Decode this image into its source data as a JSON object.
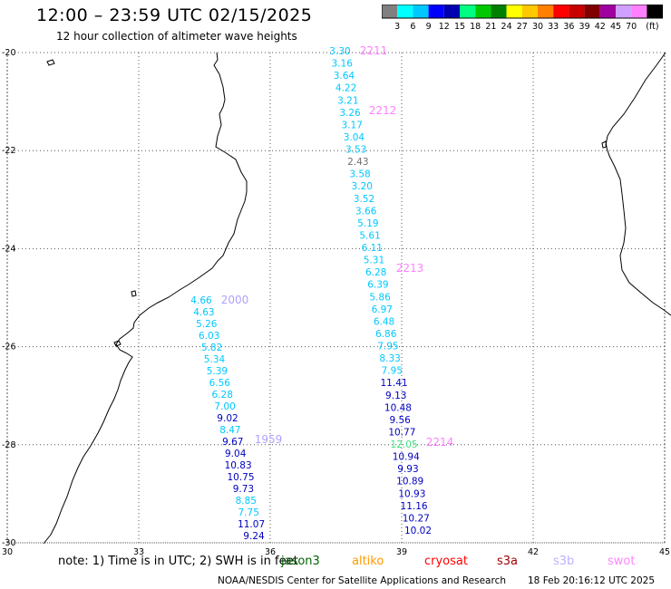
{
  "title": "12:00 – 23:59 UTC 02/15/2025",
  "subtitle": "12 hour collection of altimeter wave heights",
  "colorbar": {
    "labels": [
      "3",
      "6",
      "9",
      "12",
      "15",
      "18",
      "21",
      "24",
      "27",
      "30",
      "33",
      "36",
      "39",
      "42",
      "45",
      "70"
    ],
    "unit": "(ft)",
    "colors": [
      "#808080",
      "#00ffff",
      "#00c8ff",
      "#0000ff",
      "#0000b0",
      "#00ff80",
      "#00c800",
      "#008000",
      "#ffff00",
      "#ffc800",
      "#ff8000",
      "#ff0000",
      "#c80000",
      "#800000",
      "#a000a0",
      "#d0a0ff",
      "#ff80ff",
      "#000000"
    ]
  },
  "map": {
    "lat_ticks": [
      {
        "value": -20,
        "label": "-20"
      },
      {
        "value": -22,
        "label": "-22"
      },
      {
        "value": -24,
        "label": "-24"
      },
      {
        "value": -26,
        "label": "-26"
      },
      {
        "value": -28,
        "label": "-28"
      },
      {
        "value": -30,
        "label": "-30"
      }
    ],
    "lon_ticks": [
      {
        "value": 30,
        "label": "30"
      },
      {
        "value": 33,
        "label": "33"
      },
      {
        "value": 36,
        "label": "36"
      },
      {
        "value": 39,
        "label": "39"
      },
      {
        "value": 42,
        "label": "42"
      },
      {
        "value": 45,
        "label": "45"
      }
    ],
    "track_times": [
      {
        "label": "2211",
        "color": "#ff80ff"
      },
      {
        "label": "2212",
        "color": "#ff80ff"
      },
      {
        "label": "2213",
        "color": "#ff80ff"
      },
      {
        "label": "2214",
        "color": "#ff80ff"
      },
      {
        "label": "2000",
        "color": "#b0a0ff"
      },
      {
        "label": "1959",
        "color": "#b0a0ff"
      }
    ],
    "tracks": [
      {
        "name": "east",
        "observations": [
          {
            "v": "3.30",
            "c": "#00c8ff"
          },
          {
            "v": "3.16",
            "c": "#00c8ff"
          },
          {
            "v": "3.64",
            "c": "#00c8ff"
          },
          {
            "v": "4.22",
            "c": "#00c8ff"
          },
          {
            "v": "3.21",
            "c": "#00c8ff"
          },
          {
            "v": "3.26",
            "c": "#00c8ff"
          },
          {
            "v": "3.17",
            "c": "#00c8ff"
          },
          {
            "v": "3.04",
            "c": "#00c8ff"
          },
          {
            "v": "3.53",
            "c": "#00c8ff"
          },
          {
            "v": "2.43",
            "c": "#707070"
          },
          {
            "v": "3.58",
            "c": "#00c8ff"
          },
          {
            "v": "3.20",
            "c": "#00c8ff"
          },
          {
            "v": "3.52",
            "c": "#00c8ff"
          },
          {
            "v": "3.66",
            "c": "#00c8ff"
          },
          {
            "v": "5.19",
            "c": "#00c8ff"
          },
          {
            "v": "5.61",
            "c": "#00c8ff"
          },
          {
            "v": "6.11",
            "c": "#00c8ff"
          },
          {
            "v": "5.31",
            "c": "#00c8ff"
          },
          {
            "v": "6.28",
            "c": "#00c8ff"
          },
          {
            "v": "6.39",
            "c": "#00c8ff"
          },
          {
            "v": "5.86",
            "c": "#00c8ff"
          },
          {
            "v": "6.97",
            "c": "#00c8ff"
          },
          {
            "v": "6.48",
            "c": "#00c8ff"
          },
          {
            "v": "6.86",
            "c": "#00c8ff"
          },
          {
            "v": "7.95",
            "c": "#00c8ff"
          },
          {
            "v": "8.33",
            "c": "#00c8ff"
          },
          {
            "v": "7.95",
            "c": "#00c8ff"
          },
          {
            "v": "11.41",
            "c": "#0000c0"
          },
          {
            "v": "9.13",
            "c": "#0000c0"
          },
          {
            "v": "10.48",
            "c": "#0000c0"
          },
          {
            "v": "9.56",
            "c": "#0000c0"
          },
          {
            "v": "10.77",
            "c": "#0000c0"
          },
          {
            "v": "12.05",
            "c": "#40e080"
          },
          {
            "v": "10.94",
            "c": "#0000c0"
          },
          {
            "v": "9.93",
            "c": "#0000c0"
          },
          {
            "v": "10.89",
            "c": "#0000c0"
          },
          {
            "v": "10.93",
            "c": "#0000c0"
          },
          {
            "v": "11.16",
            "c": "#0000c0"
          },
          {
            "v": "10.27",
            "c": "#0000c0"
          },
          {
            "v": "10.02",
            "c": "#0000c0"
          }
        ]
      },
      {
        "name": "west",
        "observations": [
          {
            "v": "4.66",
            "c": "#00c8ff"
          },
          {
            "v": "4.63",
            "c": "#00c8ff"
          },
          {
            "v": "5.26",
            "c": "#00c8ff"
          },
          {
            "v": "6.03",
            "c": "#00c8ff"
          },
          {
            "v": "5.82",
            "c": "#00c8ff"
          },
          {
            "v": "5.34",
            "c": "#00c8ff"
          },
          {
            "v": "5.39",
            "c": "#00c8ff"
          },
          {
            "v": "6.56",
            "c": "#00c8ff"
          },
          {
            "v": "6.28",
            "c": "#00c8ff"
          },
          {
            "v": "7.00",
            "c": "#00c8ff"
          },
          {
            "v": "9.02",
            "c": "#0000c0"
          },
          {
            "v": "8.47",
            "c": "#00c8ff"
          },
          {
            "v": "9.67",
            "c": "#0000c0"
          },
          {
            "v": "9.04",
            "c": "#0000c0"
          },
          {
            "v": "10.83",
            "c": "#0000c0"
          },
          {
            "v": "10.75",
            "c": "#0000c0"
          },
          {
            "v": "9.73",
            "c": "#0000c0"
          },
          {
            "v": "8.85",
            "c": "#00c8ff"
          },
          {
            "v": "7.75",
            "c": "#00c8ff"
          },
          {
            "v": "11.07",
            "c": "#0000c0"
          },
          {
            "v": "9.24",
            "c": "#0000c0"
          }
        ]
      }
    ]
  },
  "footer": {
    "note": "note: 1) Time is in UTC; 2) SWH is in feet",
    "missions": [
      {
        "label": "jason3",
        "color": "#006400"
      },
      {
        "label": "altiko",
        "color": "#ff9900"
      },
      {
        "label": "cryosat",
        "color": "#ff0000"
      },
      {
        "label": "s3a",
        "color": "#a00000"
      },
      {
        "label": "s3b",
        "color": "#c0b0ff"
      },
      {
        "label": "swot",
        "color": "#ff88ff"
      }
    ],
    "credit": "NOAA/NESDIS Center for Satellite Applications and Research",
    "timestamp": "18 Feb 20:16:12 UTC 2025"
  }
}
